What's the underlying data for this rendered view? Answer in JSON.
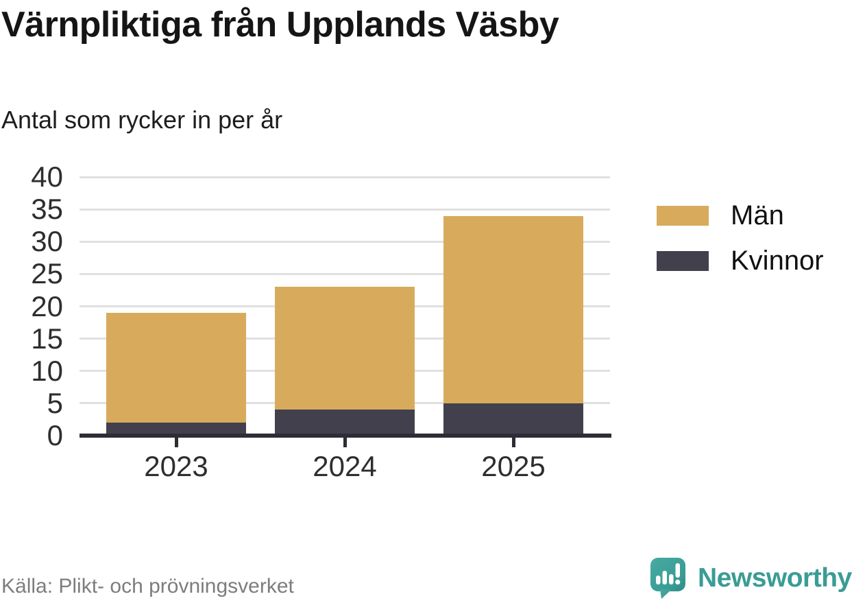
{
  "header": {
    "title": "Värnpliktiga från Upplands Väsby",
    "subtitle": "Antal som rycker in per år"
  },
  "chart_data": {
    "type": "bar",
    "stacked": true,
    "title": "Värnpliktiga från Upplands Väsby",
    "subtitle": "Antal som rycker in per år",
    "categories": [
      "2023",
      "2024",
      "2025"
    ],
    "series": [
      {
        "name": "Kvinnor",
        "color": "#42404d",
        "values": [
          2,
          4,
          5
        ]
      },
      {
        "name": "Män",
        "color": "#d8ab5c",
        "values": [
          17,
          19,
          29
        ]
      }
    ],
    "totals": [
      19,
      23,
      34
    ],
    "ylabel": "",
    "xlabel": "",
    "ylim": [
      0,
      40
    ],
    "yticks": [
      0,
      5,
      10,
      15,
      20,
      25,
      30,
      35,
      40
    ],
    "grid": true,
    "legend_position": "right"
  },
  "legend": {
    "items": [
      {
        "label": "Män",
        "color": "#d8ab5c"
      },
      {
        "label": "Kvinnor",
        "color": "#42404d"
      }
    ]
  },
  "footer": {
    "source": "Källa: Plikt- och prövningsverket",
    "brand": "Newsworthy",
    "brand_color": "#3a9c95"
  }
}
